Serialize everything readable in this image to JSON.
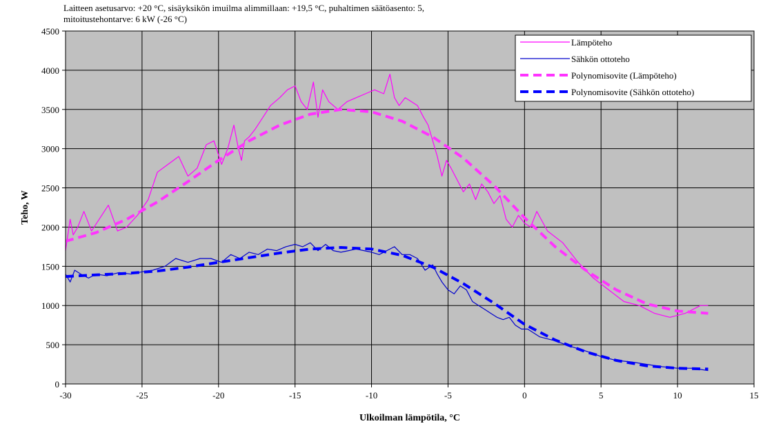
{
  "chart_data": {
    "type": "line",
    "title": "Laitteen asetusarvo: +20 °C, sisäyksikön imuilma alimmillaan: +19,5 °C, puhaltimen säätöasento: 5,",
    "subtitle": "mitoitustehontarve: 6 kW (-26 °C)",
    "xlabel": "Ulkoilman lämpötila, °C",
    "ylabel": "Teho, W",
    "xlim": [
      -30,
      15
    ],
    "ylim": [
      0,
      4500
    ],
    "xticks": [
      -30,
      -25,
      -20,
      -15,
      -10,
      -5,
      0,
      5,
      10,
      15
    ],
    "yticks": [
      0,
      500,
      1000,
      1500,
      2000,
      2500,
      3000,
      3500,
      4000,
      4500
    ],
    "grid": true,
    "background": "#c0c0c0",
    "legend_position": "top-right",
    "series": [
      {
        "name": "Lämpöteho",
        "color": "#ff00ff",
        "style": "solid",
        "x": [
          -30,
          -29.7,
          -29.5,
          -29.2,
          -28.8,
          -28.3,
          -27.8,
          -27.2,
          -26.6,
          -26,
          -25.3,
          -24.6,
          -24,
          -23.3,
          -22.6,
          -22,
          -21.4,
          -20.8,
          -20.3,
          -19.8,
          -19.4,
          -19,
          -18.7,
          -18.5,
          -18.3,
          -18,
          -17.6,
          -17.1,
          -16.6,
          -16,
          -15.5,
          -15,
          -14.6,
          -14.2,
          -13.8,
          -13.5,
          -13.2,
          -12.8,
          -12.2,
          -11.6,
          -11,
          -10.4,
          -9.8,
          -9.2,
          -8.8,
          -8.5,
          -8.2,
          -7.8,
          -7.4,
          -7,
          -6.6,
          -6.3,
          -6,
          -5.7,
          -5.4,
          -5.1,
          -4.8,
          -4.4,
          -4,
          -3.6,
          -3.2,
          -2.8,
          -2.4,
          -2,
          -1.6,
          -1.2,
          -0.8,
          -0.4,
          0,
          0.4,
          0.8,
          1.5,
          2.5,
          3.5,
          4.5,
          5.5,
          6.5,
          7.5,
          8.5,
          9.5,
          10.5,
          11.5,
          12
        ],
        "y": [
          1700,
          2100,
          1900,
          2000,
          2200,
          1950,
          2100,
          2280,
          1950,
          2000,
          2150,
          2350,
          2700,
          2800,
          2900,
          2650,
          2750,
          3050,
          3100,
          2800,
          3000,
          3300,
          3000,
          2850,
          3100,
          3150,
          3250,
          3400,
          3550,
          3650,
          3750,
          3800,
          3600,
          3500,
          3850,
          3400,
          3750,
          3600,
          3500,
          3600,
          3650,
          3700,
          3750,
          3700,
          3950,
          3650,
          3550,
          3650,
          3600,
          3550,
          3400,
          3300,
          3100,
          2900,
          2650,
          2850,
          2750,
          2600,
          2450,
          2550,
          2350,
          2550,
          2450,
          2300,
          2400,
          2100,
          2000,
          2150,
          2050,
          2000,
          2200,
          1950,
          1800,
          1550,
          1350,
          1200,
          1050,
          1000,
          900,
          850,
          900,
          1000,
          1000
        ]
      },
      {
        "name": "Sähkön ottoteho",
        "color": "#0000cc",
        "style": "solid",
        "x": [
          -30,
          -29.7,
          -29.4,
          -29,
          -28.5,
          -28,
          -27.3,
          -26.5,
          -25.7,
          -25,
          -24.3,
          -23.5,
          -22.8,
          -22,
          -21.2,
          -20.5,
          -19.8,
          -19.2,
          -18.6,
          -18,
          -17.4,
          -16.8,
          -16.2,
          -15.6,
          -15,
          -14.5,
          -14,
          -13.5,
          -13,
          -12.5,
          -12,
          -11.5,
          -11,
          -10.5,
          -10,
          -9.5,
          -9,
          -8.5,
          -8,
          -7.5,
          -7,
          -6.5,
          -6,
          -5.7,
          -5.4,
          -5,
          -4.6,
          -4.2,
          -3.8,
          -3.4,
          -3,
          -2.6,
          -2.2,
          -1.8,
          -1.4,
          -1,
          -0.6,
          -0.2,
          0.2,
          0.6,
          1,
          2,
          3,
          4,
          5,
          6,
          7,
          8,
          9,
          10,
          11,
          12
        ],
        "y": [
          1400,
          1300,
          1450,
          1400,
          1350,
          1400,
          1380,
          1420,
          1400,
          1430,
          1450,
          1500,
          1600,
          1550,
          1600,
          1600,
          1550,
          1650,
          1600,
          1680,
          1650,
          1720,
          1700,
          1750,
          1780,
          1750,
          1800,
          1700,
          1780,
          1700,
          1680,
          1700,
          1720,
          1700,
          1680,
          1650,
          1700,
          1750,
          1650,
          1650,
          1600,
          1450,
          1520,
          1400,
          1300,
          1200,
          1150,
          1250,
          1200,
          1050,
          1000,
          950,
          900,
          850,
          820,
          850,
          750,
          700,
          700,
          650,
          600,
          550,
          480,
          420,
          350,
          300,
          280,
          250,
          220,
          200,
          200,
          170
        ]
      },
      {
        "name": "Polynomisovite (Lämpöteho)",
        "color": "#ff33ff",
        "style": "dashed",
        "x": [
          -30,
          -28,
          -26,
          -24,
          -22,
          -20,
          -18,
          -16,
          -14,
          -12,
          -10,
          -8,
          -6,
          -4,
          -2,
          0,
          2,
          4,
          6,
          8,
          10,
          12
        ],
        "y": [
          1820,
          1930,
          2100,
          2320,
          2580,
          2850,
          3100,
          3300,
          3440,
          3500,
          3470,
          3350,
          3150,
          2880,
          2530,
          2120,
          1750,
          1450,
          1200,
          1020,
          930,
          900
        ]
      },
      {
        "name": "Polynomisovite (Sähkön ottoteho)",
        "color": "#0000ff",
        "style": "dashed",
        "x": [
          -30,
          -28,
          -26,
          -24,
          -22,
          -20,
          -18,
          -16,
          -14,
          -12,
          -10,
          -8,
          -6,
          -4,
          -2,
          0,
          2,
          4,
          6,
          8,
          10,
          12
        ],
        "y": [
          1370,
          1390,
          1410,
          1440,
          1490,
          1550,
          1610,
          1670,
          1720,
          1740,
          1720,
          1640,
          1490,
          1280,
          1030,
          760,
          560,
          410,
          300,
          230,
          200,
          190
        ]
      }
    ]
  }
}
